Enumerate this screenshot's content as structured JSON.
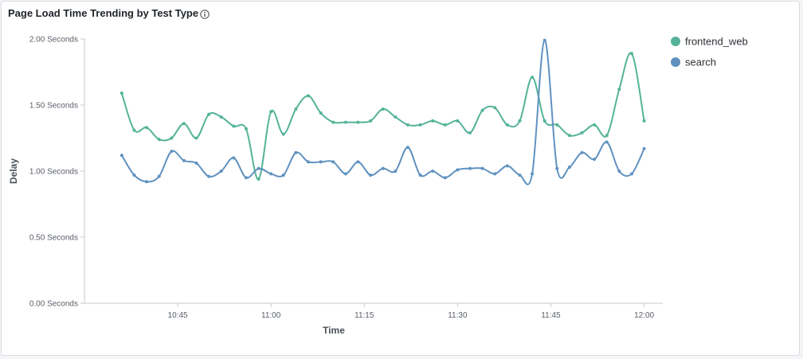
{
  "panel": {
    "title": "Page Load Time Trending by Test Type",
    "info_icon": "info-circle-icon"
  },
  "chart_data": {
    "type": "line",
    "xlabel": "Time",
    "ylabel": "Delay",
    "ylim": [
      0,
      2
    ],
    "y_ticks": [
      {
        "value": 0,
        "label": "0.00 Seconds"
      },
      {
        "value": 0.5,
        "label": "0.50 Seconds"
      },
      {
        "value": 1,
        "label": "1.00 Seconds"
      },
      {
        "value": 1.5,
        "label": "1.50 Seconds"
      },
      {
        "value": 2,
        "label": "2.00 Seconds"
      }
    ],
    "xlim": [
      "10:30",
      "12:03"
    ],
    "x_ticks": [
      "10:45",
      "11:00",
      "11:15",
      "11:30",
      "11:45",
      "12:00"
    ],
    "legend_position": "top-right",
    "series": [
      {
        "name": "frontend_web",
        "color": "#54b399",
        "points": [
          [
            "10:36",
            1.59
          ],
          [
            "10:38",
            1.31
          ],
          [
            "10:40",
            1.33
          ],
          [
            "10:42",
            1.24
          ],
          [
            "10:44",
            1.25
          ],
          [
            "10:46",
            1.36
          ],
          [
            "10:48",
            1.25
          ],
          [
            "10:50",
            1.43
          ],
          [
            "10:52",
            1.41
          ],
          [
            "10:54",
            1.34
          ],
          [
            "10:56",
            1.32
          ],
          [
            "10:58",
            0.94
          ],
          [
            "11:00",
            1.45
          ],
          [
            "11:02",
            1.28
          ],
          [
            "11:04",
            1.47
          ],
          [
            "11:06",
            1.57
          ],
          [
            "11:08",
            1.44
          ],
          [
            "11:10",
            1.37
          ],
          [
            "11:12",
            1.37
          ],
          [
            "11:14",
            1.37
          ],
          [
            "11:16",
            1.38
          ],
          [
            "11:18",
            1.47
          ],
          [
            "11:20",
            1.41
          ],
          [
            "11:22",
            1.35
          ],
          [
            "11:24",
            1.35
          ],
          [
            "11:26",
            1.38
          ],
          [
            "11:28",
            1.35
          ],
          [
            "11:30",
            1.38
          ],
          [
            "11:32",
            1.29
          ],
          [
            "11:34",
            1.46
          ],
          [
            "11:36",
            1.48
          ],
          [
            "11:38",
            1.35
          ],
          [
            "11:40",
            1.38
          ],
          [
            "11:42",
            1.71
          ],
          [
            "11:44",
            1.38
          ],
          [
            "11:46",
            1.35
          ],
          [
            "11:48",
            1.27
          ],
          [
            "11:50",
            1.29
          ],
          [
            "11:52",
            1.35
          ],
          [
            "11:54",
            1.27
          ],
          [
            "11:56",
            1.62
          ],
          [
            "11:58",
            1.89
          ],
          [
            "12:00",
            1.38
          ]
        ]
      },
      {
        "name": "search",
        "color": "#6092c0",
        "points": [
          [
            "10:36",
            1.12
          ],
          [
            "10:38",
            0.97
          ],
          [
            "10:40",
            0.92
          ],
          [
            "10:42",
            0.96
          ],
          [
            "10:44",
            1.15
          ],
          [
            "10:46",
            1.08
          ],
          [
            "10:48",
            1.06
          ],
          [
            "10:50",
            0.96
          ],
          [
            "10:52",
            1.0
          ],
          [
            "10:54",
            1.1
          ],
          [
            "10:56",
            0.95
          ],
          [
            "10:58",
            1.02
          ],
          [
            "11:00",
            0.98
          ],
          [
            "11:02",
            0.97
          ],
          [
            "11:04",
            1.14
          ],
          [
            "11:06",
            1.07
          ],
          [
            "11:08",
            1.07
          ],
          [
            "11:10",
            1.07
          ],
          [
            "11:12",
            0.98
          ],
          [
            "11:14",
            1.07
          ],
          [
            "11:16",
            0.97
          ],
          [
            "11:18",
            1.02
          ],
          [
            "11:20",
            1.0
          ],
          [
            "11:22",
            1.18
          ],
          [
            "11:24",
            0.97
          ],
          [
            "11:26",
            1.0
          ],
          [
            "11:28",
            0.95
          ],
          [
            "11:30",
            1.01
          ],
          [
            "11:32",
            1.02
          ],
          [
            "11:34",
            1.02
          ],
          [
            "11:36",
            0.98
          ],
          [
            "11:38",
            1.04
          ],
          [
            "11:40",
            0.97
          ],
          [
            "11:42",
            0.98
          ],
          [
            "11:44",
            1.99
          ],
          [
            "11:46",
            1.02
          ],
          [
            "11:48",
            1.03
          ],
          [
            "11:50",
            1.14
          ],
          [
            "11:52",
            1.09
          ],
          [
            "11:54",
            1.22
          ],
          [
            "11:56",
            1.0
          ],
          [
            "11:58",
            0.98
          ],
          [
            "12:00",
            1.17
          ]
        ]
      }
    ]
  }
}
